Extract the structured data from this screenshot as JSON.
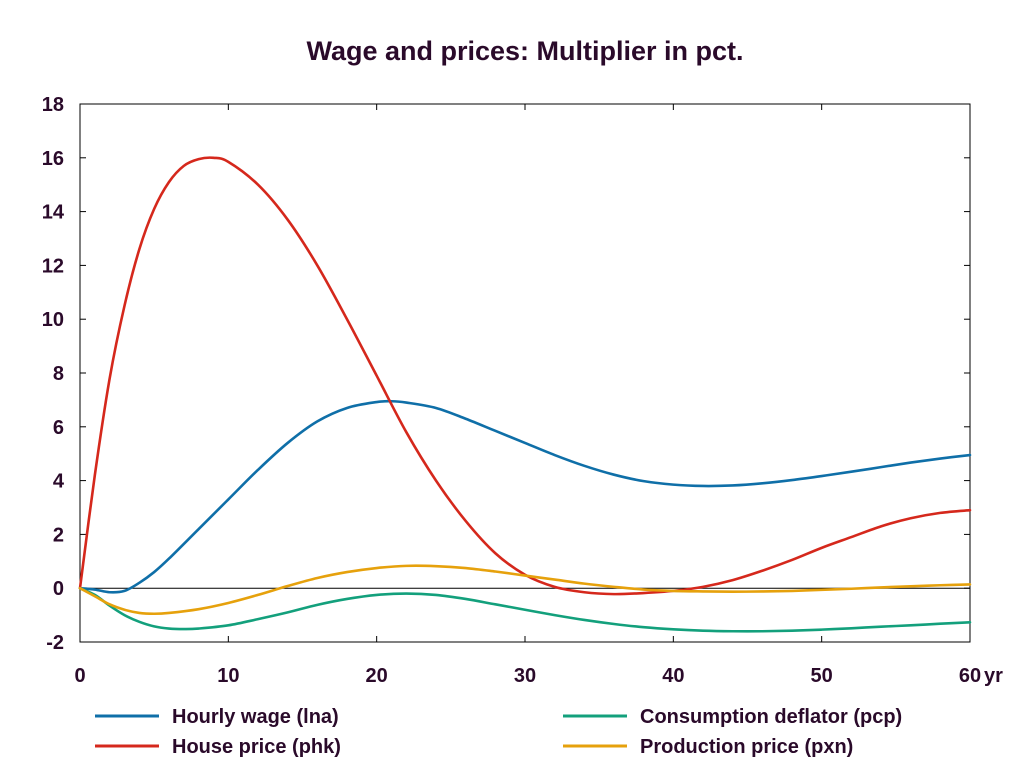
{
  "chart_data": {
    "type": "line",
    "title": "Wage and prices: Multiplier in pct.",
    "x_unit_label": "yr",
    "xlim": [
      0,
      60
    ],
    "ylim": [
      -2,
      18
    ],
    "x_ticks": [
      "0",
      "10",
      "20",
      "30",
      "40",
      "50",
      "60"
    ],
    "y_ticks": [
      "18",
      "16",
      "14",
      "12",
      "10",
      "8",
      "6",
      "4",
      "2",
      "0",
      "-2"
    ],
    "legend_position": "bottom",
    "zero_line": true,
    "series": [
      {
        "name": "Hourly wage (lna)",
        "color": "#0f6fa8",
        "x": [
          0,
          1,
          2,
          3,
          4,
          5,
          6,
          8,
          10,
          12,
          14,
          16,
          18,
          20,
          21,
          22,
          24,
          26,
          28,
          30,
          32,
          34,
          36,
          38,
          40,
          42,
          44,
          46,
          48,
          50,
          52,
          54,
          56,
          58,
          60
        ],
        "y": [
          0,
          -0.05,
          -0.15,
          -0.1,
          0.2,
          0.6,
          1.1,
          2.2,
          3.3,
          4.4,
          5.4,
          6.2,
          6.7,
          6.92,
          6.95,
          6.9,
          6.7,
          6.3,
          5.85,
          5.4,
          4.95,
          4.55,
          4.22,
          3.98,
          3.85,
          3.8,
          3.82,
          3.9,
          4.02,
          4.17,
          4.33,
          4.5,
          4.67,
          4.82,
          4.95
        ]
      },
      {
        "name": "House price (phk)",
        "color": "#d5281c",
        "x": [
          0,
          1,
          2,
          3,
          4,
          5,
          6,
          7,
          8,
          9,
          10,
          12,
          14,
          16,
          18,
          20,
          22,
          24,
          26,
          28,
          30,
          32,
          34,
          36,
          38,
          40,
          42,
          44,
          46,
          48,
          50,
          52,
          54,
          56,
          58,
          60
        ],
        "y": [
          0,
          4.2,
          7.8,
          10.5,
          12.6,
          14.1,
          15.1,
          15.7,
          15.95,
          16.0,
          15.85,
          15.0,
          13.7,
          12.0,
          10.0,
          7.9,
          5.8,
          4.0,
          2.5,
          1.3,
          0.5,
          0.05,
          -0.15,
          -0.22,
          -0.18,
          -0.1,
          0.05,
          0.3,
          0.65,
          1.05,
          1.5,
          1.9,
          2.3,
          2.6,
          2.8,
          2.9
        ]
      },
      {
        "name": "Consumption deflator (pcp)",
        "color": "#13a07c",
        "x": [
          0,
          1,
          2,
          3,
          4,
          5,
          6,
          7,
          8,
          10,
          12,
          14,
          16,
          18,
          20,
          22,
          24,
          26,
          28,
          30,
          32,
          34,
          36,
          38,
          40,
          42,
          44,
          46,
          48,
          50,
          52,
          54,
          56,
          58,
          60
        ],
        "y": [
          0,
          -0.25,
          -0.65,
          -1.0,
          -1.25,
          -1.42,
          -1.5,
          -1.52,
          -1.5,
          -1.38,
          -1.15,
          -0.9,
          -0.62,
          -0.4,
          -0.25,
          -0.2,
          -0.25,
          -0.4,
          -0.6,
          -0.8,
          -1.0,
          -1.18,
          -1.33,
          -1.45,
          -1.53,
          -1.58,
          -1.6,
          -1.6,
          -1.58,
          -1.54,
          -1.49,
          -1.43,
          -1.38,
          -1.32,
          -1.27
        ]
      },
      {
        "name": "Production price (pxn)",
        "color": "#e6a10c",
        "x": [
          0,
          1,
          2,
          3,
          4,
          5,
          6,
          8,
          10,
          12,
          14,
          16,
          18,
          20,
          22,
          24,
          26,
          28,
          30,
          32,
          34,
          36,
          38,
          40,
          42,
          44,
          46,
          48,
          50,
          52,
          54,
          56,
          58,
          60
        ],
        "y": [
          0,
          -0.3,
          -0.6,
          -0.8,
          -0.92,
          -0.95,
          -0.92,
          -0.78,
          -0.55,
          -0.25,
          0.08,
          0.38,
          0.6,
          0.75,
          0.83,
          0.82,
          0.75,
          0.62,
          0.47,
          0.32,
          0.17,
          0.05,
          -0.05,
          -0.1,
          -0.12,
          -0.13,
          -0.12,
          -0.1,
          -0.06,
          -0.02,
          0.03,
          0.07,
          0.11,
          0.14
        ]
      }
    ]
  }
}
